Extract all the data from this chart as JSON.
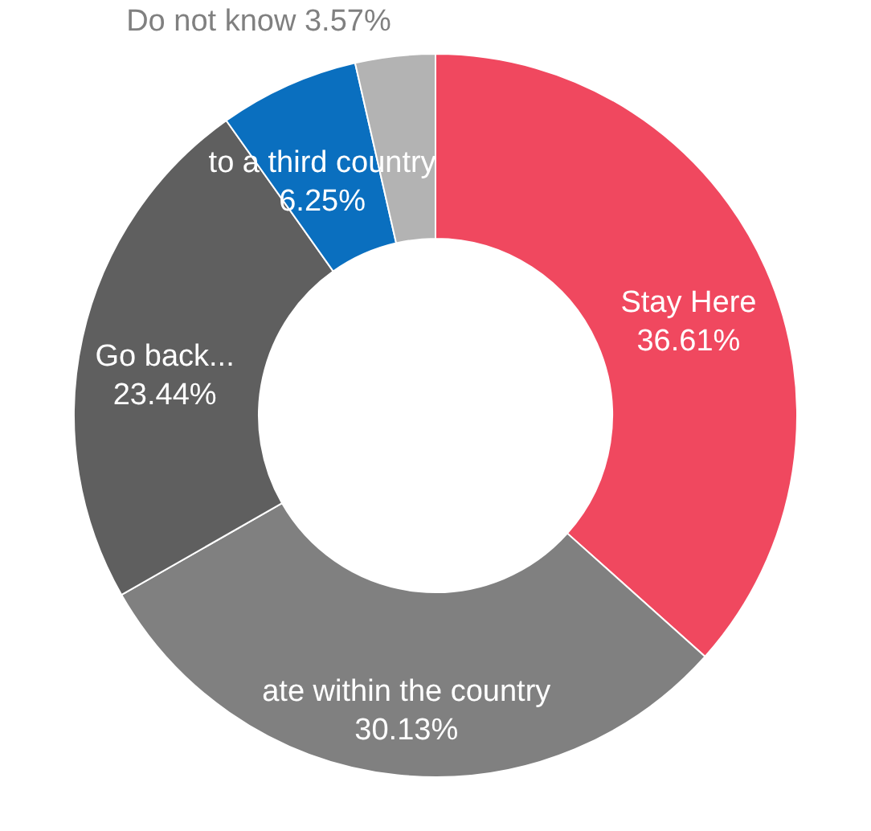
{
  "chart_data": {
    "type": "donut",
    "categories": [
      "Stay Here",
      "ate within the country",
      "Go back...",
      "to a third country",
      "Do not know"
    ],
    "values": [
      36.61,
      30.13,
      23.44,
      6.25,
      3.57
    ],
    "colors": [
      "#f0485f",
      "#808080",
      "#5f5f5f",
      "#0a6fbf",
      "#b3b3b3"
    ],
    "value_labels": [
      "36.61%",
      "30.13%",
      "23.44%",
      "6.25%",
      "3.57%"
    ]
  }
}
